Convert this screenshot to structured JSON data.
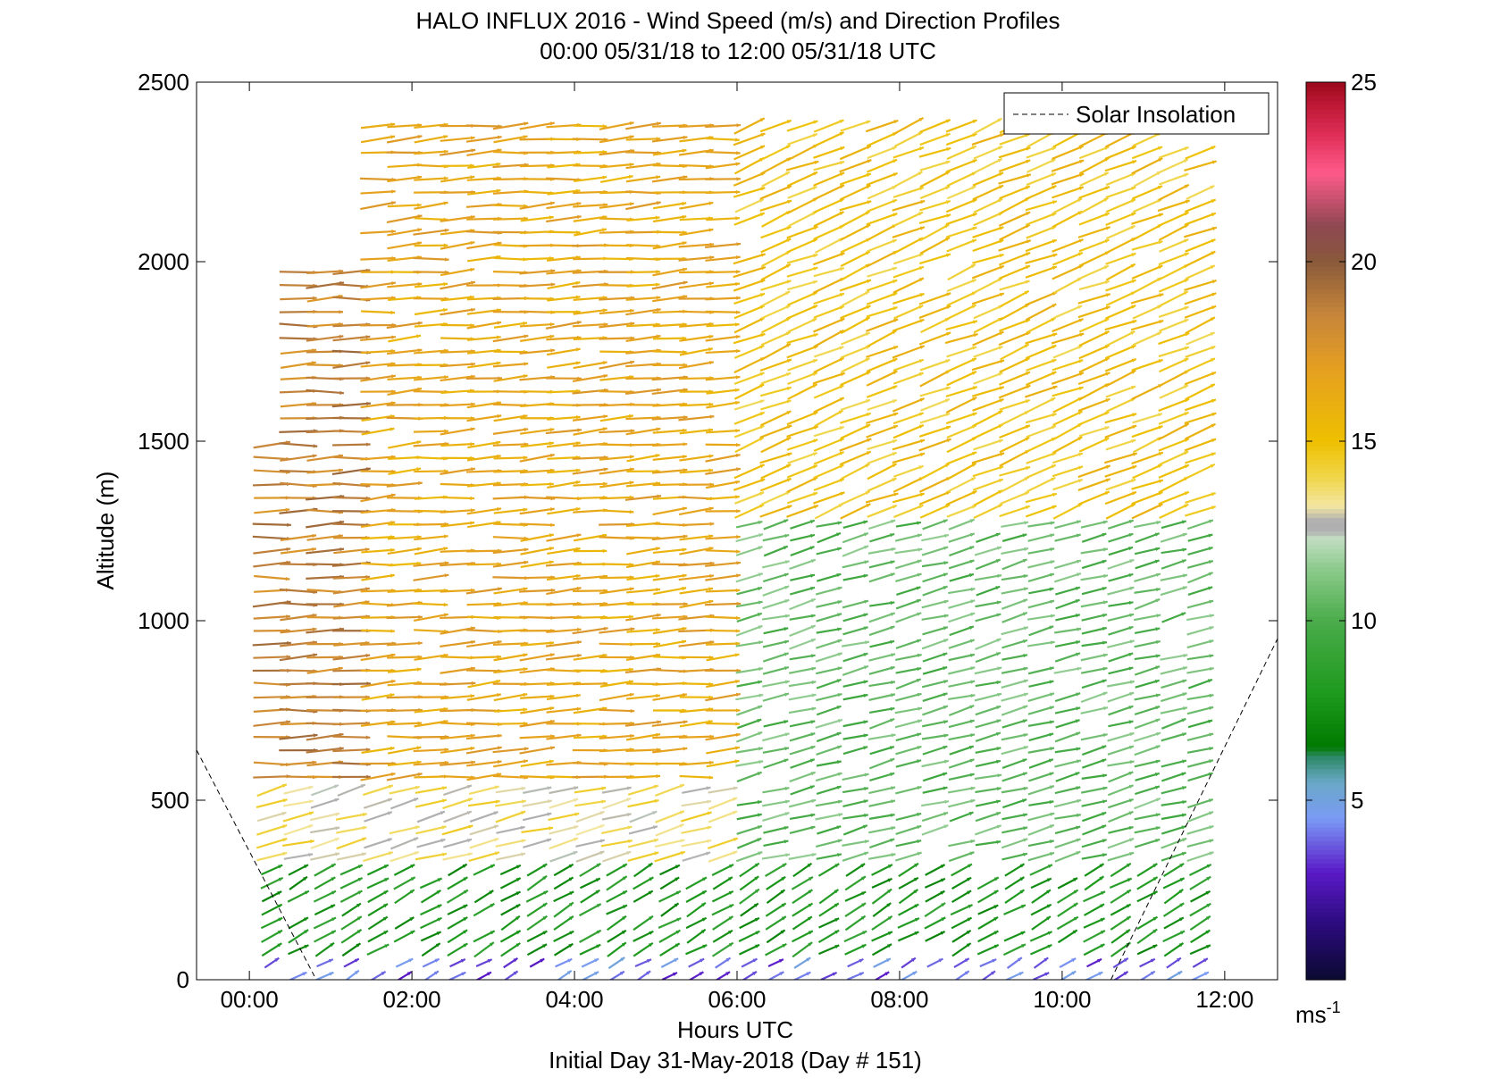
{
  "chart_data": {
    "type": "quiver",
    "title": "HALO INFLUX 2016 - Wind Speed (m/s) and Direction Profiles",
    "subtitle": "00:00 05/31/18 to 12:00 05/31/18  UTC",
    "xlabel": "Hours UTC",
    "ylabel": "Altitude (m)",
    "footer": "Initial Day 31-May-2018 (Day # 151)",
    "xticks": [
      "00:00",
      "02:00",
      "04:00",
      "06:00",
      "08:00",
      "10:00",
      "12:00"
    ],
    "xtick_hours": [
      0,
      2,
      4,
      6,
      8,
      10,
      12
    ],
    "xlim_hours": [
      -0.65,
      12.65
    ],
    "yticks": [
      0,
      500,
      1000,
      1500,
      2000,
      2500
    ],
    "ylim": [
      0,
      2500
    ],
    "legend": {
      "label": "Solar Insolation",
      "position": "top-right",
      "style": "dashed"
    },
    "colorbar": {
      "unit": "ms",
      "unit_exp": "-1",
      "ticks": [
        5,
        10,
        15,
        20,
        25
      ],
      "range": [
        0,
        25
      ],
      "colors": [
        [
          0,
          "#0a0a30"
        ],
        [
          1.5,
          "#2a0a7a"
        ],
        [
          3,
          "#5a1ac8"
        ],
        [
          4.5,
          "#7a9af5"
        ],
        [
          5.5,
          "#6aa8c8"
        ],
        [
          6.2,
          "#2f8a6a"
        ],
        [
          6.5,
          "#007a00"
        ],
        [
          8,
          "#1e9a1e"
        ],
        [
          10,
          "#4aac4a"
        ],
        [
          11.5,
          "#8fcb8f"
        ],
        [
          12.3,
          "#c2ddc2"
        ],
        [
          12.5,
          "#b0b0b0"
        ],
        [
          12.8,
          "#b0b0b0"
        ],
        [
          13.2,
          "#f3e6a2"
        ],
        [
          14,
          "#f0d64a"
        ],
        [
          15,
          "#eec000"
        ],
        [
          17,
          "#e5a020"
        ],
        [
          18.5,
          "#c8863a"
        ],
        [
          20,
          "#8a5a3a"
        ],
        [
          21,
          "#8e4852"
        ],
        [
          22.5,
          "#ff5a8a"
        ],
        [
          23.5,
          "#e0305a"
        ],
        [
          24.5,
          "#b81530"
        ],
        [
          25,
          "#9a0a1a"
        ]
      ]
    },
    "solar_insolation_line": [
      {
        "hours": -0.65,
        "altitude": 640
      },
      {
        "hours": 0.8,
        "altitude": 10
      },
      {
        "hours": 10.6,
        "altitude": 0
      },
      {
        "hours": 12.65,
        "altitude": 950
      }
    ],
    "wind_profile_summary": [
      {
        "hours_range": [
          0,
          12
        ],
        "altitude_range": [
          0,
          60
        ],
        "speed_ms": 4,
        "direction_deg": 240
      },
      {
        "hours_range": [
          0,
          12
        ],
        "altitude_range": [
          60,
          320
        ],
        "speed_ms": 8,
        "direction_deg": 240
      },
      {
        "hours_range": [
          0,
          6
        ],
        "altitude_range": [
          320,
          560
        ],
        "speed_ms": 13.5,
        "direction_deg": 255
      },
      {
        "hours_range": [
          6,
          12
        ],
        "altitude_range": [
          320,
          1300
        ],
        "speed_ms": 10.5,
        "direction_deg": 255
      },
      {
        "hours_range": [
          0,
          1.5
        ],
        "altitude_range": [
          560,
          2000
        ],
        "speed_ms": 18.5,
        "direction_deg": 268
      },
      {
        "hours_range": [
          1.5,
          6
        ],
        "altitude_range": [
          560,
          2400
        ],
        "speed_ms": 16.5,
        "direction_deg": 266
      },
      {
        "hours_range": [
          6,
          12
        ],
        "altitude_range": [
          1300,
          2400
        ],
        "speed_ms": 15,
        "direction_deg": 248
      }
    ]
  }
}
